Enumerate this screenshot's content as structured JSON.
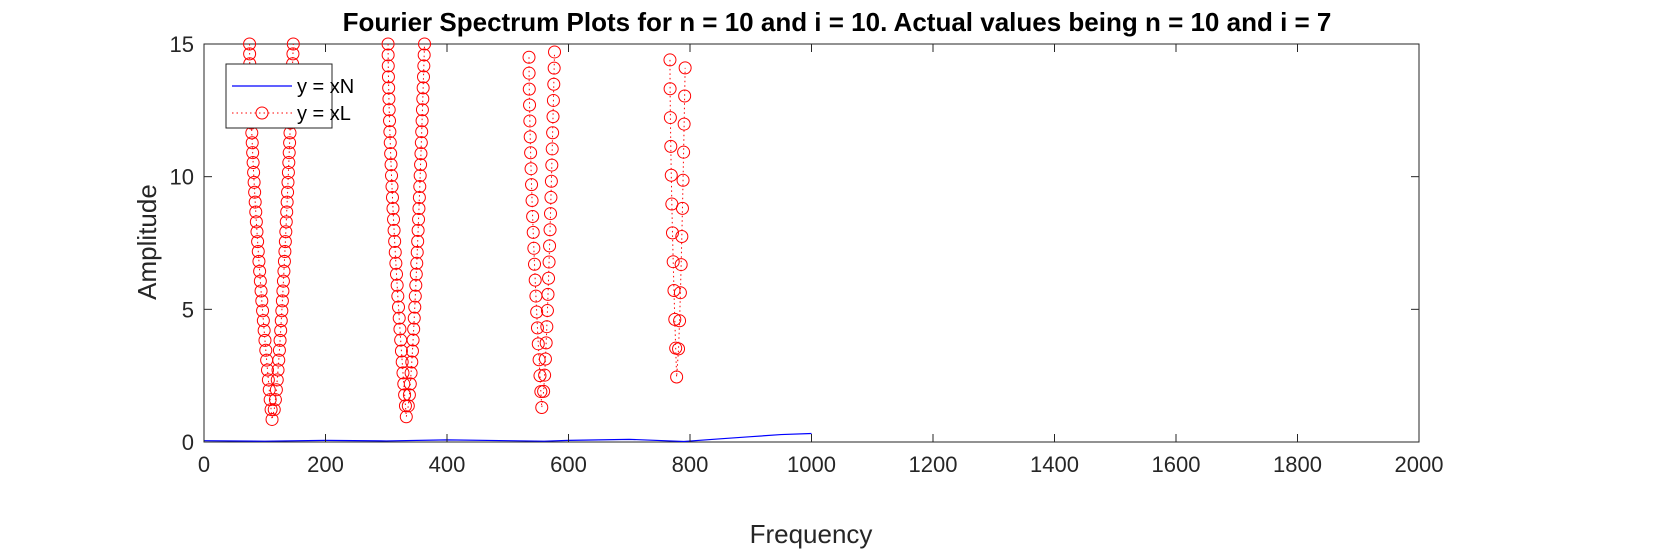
{
  "chart_data": {
    "type": "line",
    "title": "Fourier Spectrum Plots for n = 10 and i = 10. Actual values being n = 10 and i = 7",
    "xlabel": "Frequency",
    "ylabel": "Amplitude",
    "xlim": [
      0,
      2000
    ],
    "ylim": [
      0,
      15
    ],
    "xticks": [
      0,
      200,
      400,
      600,
      800,
      1000,
      1200,
      1400,
      1600,
      1800,
      2000
    ],
    "yticks": [
      0,
      5,
      10,
      15
    ],
    "grid": false,
    "legend": {
      "placement": "top-left",
      "entries": [
        "y = xN",
        "y = xL"
      ]
    },
    "series": [
      {
        "name": "y = xN",
        "style": "solid line",
        "color": "#0000ff",
        "x": [
          0,
          100,
          200,
          300,
          400,
          500,
          560,
          600,
          700,
          790,
          850,
          900,
          950,
          1000
        ],
        "y": [
          0.05,
          0.03,
          0.06,
          0.04,
          0.08,
          0.05,
          0.03,
          0.06,
          0.1,
          0.02,
          0.12,
          0.2,
          0.28,
          0.32
        ]
      },
      {
        "name": "y = xL",
        "style": "dotted line with circle markers",
        "color": "#ff0000",
        "lobes": [
          {
            "x_left_top": 75,
            "x_right_top": 147,
            "x_min": 112,
            "y_min": 0.85,
            "y_top_left": 15,
            "y_top_right": 15,
            "points_per_side": 38
          },
          {
            "x_left_top": 303,
            "x_right_top": 363,
            "x_min": 333,
            "y_min": 0.95,
            "y_top_left": 15,
            "y_top_right": 15,
            "points_per_side": 34
          },
          {
            "x_left_top": 535,
            "x_right_top": 577,
            "x_min": 556,
            "y_min": 1.3,
            "y_top_left": 14.5,
            "y_top_right": 14.7,
            "points_per_side": 22
          },
          {
            "x_left_top": 767,
            "x_right_top": 792,
            "x_min": 778,
            "y_min": 2.45,
            "y_top_left": 14.4,
            "y_top_right": 14.1,
            "points_per_side": 11
          }
        ]
      }
    ]
  },
  "colors": {
    "axis": "#262626",
    "xN": "#0000ff",
    "xL": "#ff0000",
    "background": "#ffffff"
  }
}
